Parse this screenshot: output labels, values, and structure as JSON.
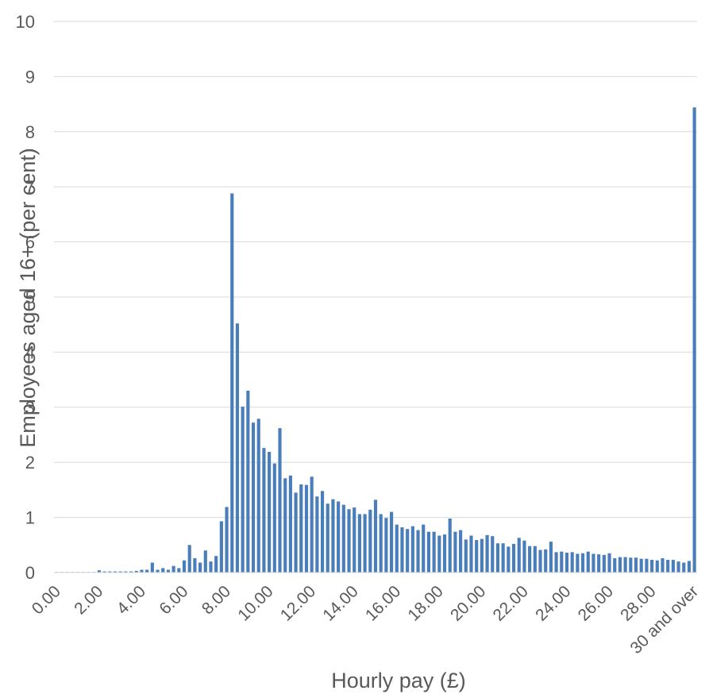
{
  "chart_data": {
    "type": "bar",
    "title": "",
    "xlabel": "Hourly pay (£)",
    "ylabel": "Employees aged 16+ (per cent)",
    "ylim": [
      0,
      10
    ],
    "yticks": [
      0,
      1,
      2,
      3,
      4,
      5,
      6,
      7,
      8,
      9,
      10
    ],
    "grid": true,
    "legend": "none",
    "bar_color": "#4a7ebb",
    "x_tick_labels": [
      "0.00",
      "2.00",
      "4.00",
      "6.00",
      "8.00",
      "10.00",
      "12.00",
      "14.00",
      "16.00",
      "18.00",
      "20.00",
      "22.00",
      "24.00",
      "26.00",
      "28.00",
      "30 and over"
    ],
    "x_tick_label_bar_index": [
      0,
      8,
      16,
      24,
      32,
      40,
      48,
      56,
      64,
      72,
      80,
      88,
      96,
      104,
      112,
      120
    ],
    "bin_width": 0.25,
    "bins_start": 0.0,
    "last_bin_label": "30 and over",
    "values": [
      0.01,
      0.01,
      0.01,
      0.01,
      0.01,
      0.01,
      0.01,
      0.01,
      0.04,
      0.02,
      0.02,
      0.02,
      0.02,
      0.02,
      0.02,
      0.03,
      0.05,
      0.05,
      0.18,
      0.05,
      0.08,
      0.05,
      0.12,
      0.08,
      0.22,
      0.5,
      0.26,
      0.18,
      0.4,
      0.2,
      0.3,
      0.93,
      1.19,
      6.88,
      4.52,
      3.01,
      3.3,
      2.72,
      2.79,
      2.26,
      2.19,
      1.98,
      2.62,
      1.71,
      1.76,
      1.45,
      1.6,
      1.59,
      1.74,
      1.38,
      1.48,
      1.25,
      1.33,
      1.29,
      1.23,
      1.15,
      1.18,
      1.06,
      1.06,
      1.14,
      1.32,
      1.06,
      0.99,
      1.1,
      0.87,
      0.82,
      0.79,
      0.84,
      0.77,
      0.87,
      0.74,
      0.74,
      0.67,
      0.69,
      0.98,
      0.74,
      0.77,
      0.6,
      0.67,
      0.59,
      0.61,
      0.68,
      0.66,
      0.53,
      0.53,
      0.47,
      0.52,
      0.63,
      0.58,
      0.48,
      0.48,
      0.41,
      0.42,
      0.56,
      0.37,
      0.38,
      0.36,
      0.37,
      0.34,
      0.35,
      0.38,
      0.34,
      0.33,
      0.32,
      0.35,
      0.26,
      0.28,
      0.28,
      0.27,
      0.27,
      0.25,
      0.25,
      0.23,
      0.22,
      0.26,
      0.23,
      0.23,
      0.2,
      0.18,
      0.21,
      8.44
    ]
  }
}
